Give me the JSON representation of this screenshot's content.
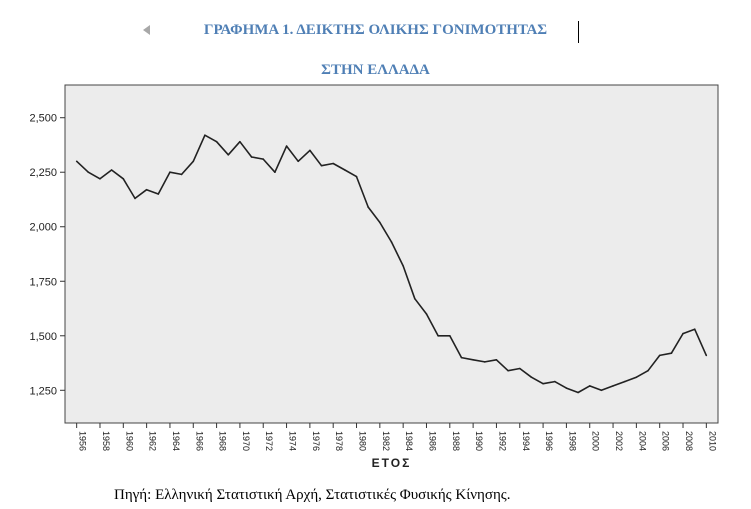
{
  "title": {
    "line1": "ΓΡΑΦΗΜΑ 1. ΔΕΙΚΤΗΣ ΟΛΙΚΗΣ ΓΟΝΙΜΟΤΗΤΑΣ",
    "line2": "ΣΤΗΝ ΕΛΛΑΔΑ"
  },
  "source": "Πηγή: Ελληνική Στατιστική Αρχή, Στατιστικές Φυσικής Κίνησης.",
  "colors": {
    "title": "#4f7fb5",
    "plot_bg": "#ececec",
    "line": "#222222"
  },
  "chart_data": {
    "type": "line",
    "title": "ΓΡΑΦΗΜΑ 1. ΔΕΙΚΤΗΣ ΟΛΙΚΗΣ ΓΟΝΙΜΟΤΗΤΑΣ ΣΤΗΝ ΕΛΛΑΔΑ",
    "xlabel": "ΕΤΟΣ",
    "ylabel": "",
    "xlim": [
      1955,
      2011
    ],
    "ylim": [
      1.1,
      2.65
    ],
    "yticks": [
      1.25,
      1.5,
      1.75,
      2.0,
      2.25,
      2.5
    ],
    "ytick_labels": [
      "1,250",
      "1,500",
      "1,750",
      "2,000",
      "2,250",
      "2,500"
    ],
    "xticks": [
      1956,
      1958,
      1960,
      1962,
      1964,
      1966,
      1968,
      1970,
      1972,
      1974,
      1976,
      1978,
      1980,
      1982,
      1984,
      1986,
      1988,
      1990,
      1992,
      1994,
      1996,
      1998,
      2000,
      2002,
      2004,
      2006,
      2008,
      2010
    ],
    "grid": false,
    "x": [
      1956,
      1957,
      1958,
      1959,
      1960,
      1961,
      1962,
      1963,
      1964,
      1965,
      1966,
      1967,
      1968,
      1969,
      1970,
      1971,
      1972,
      1973,
      1974,
      1975,
      1976,
      1977,
      1978,
      1979,
      1980,
      1981,
      1982,
      1983,
      1984,
      1985,
      1986,
      1987,
      1988,
      1989,
      1990,
      1991,
      1992,
      1993,
      1994,
      1995,
      1996,
      1997,
      1998,
      1999,
      2000,
      2001,
      2002,
      2003,
      2004,
      2005,
      2006,
      2007,
      2008,
      2009,
      2010
    ],
    "values": [
      2.3,
      2.25,
      2.22,
      2.26,
      2.22,
      2.13,
      2.17,
      2.15,
      2.25,
      2.24,
      2.3,
      2.42,
      2.39,
      2.33,
      2.39,
      2.32,
      2.31,
      2.25,
      2.37,
      2.3,
      2.35,
      2.28,
      2.29,
      2.26,
      2.23,
      2.09,
      2.02,
      1.93,
      1.82,
      1.67,
      1.6,
      1.5,
      1.5,
      1.4,
      1.39,
      1.38,
      1.39,
      1.34,
      1.35,
      1.31,
      1.28,
      1.29,
      1.26,
      1.24,
      1.27,
      1.25,
      1.27,
      1.29,
      1.31,
      1.34,
      1.41,
      1.42,
      1.51,
      1.53,
      1.41
    ]
  }
}
